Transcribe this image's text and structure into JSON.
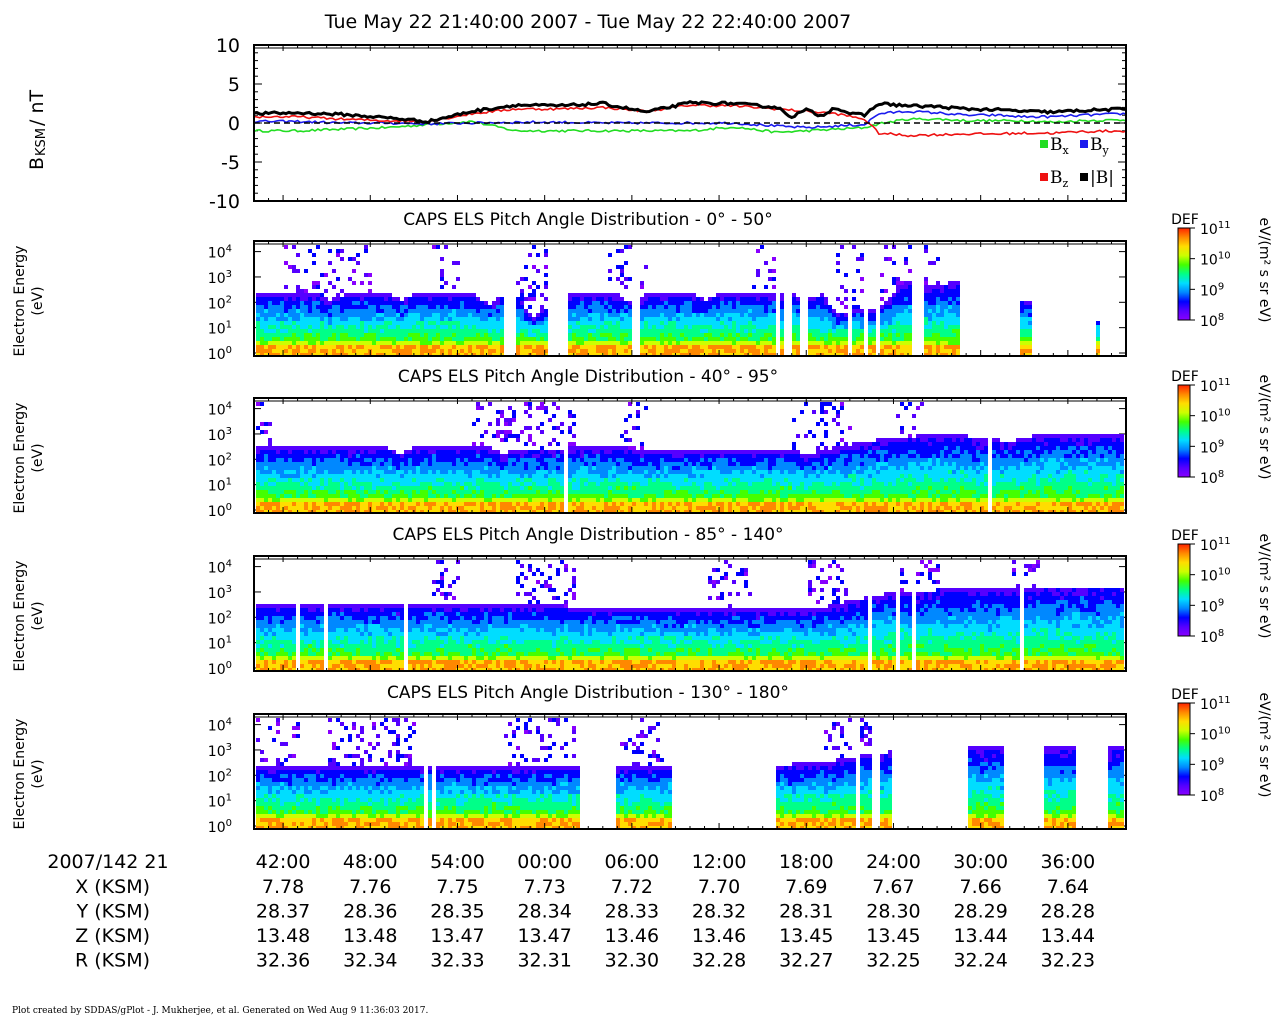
{
  "page_title": "Tue May 22 21:40:00 2007 - Tue May 22 22:40:00 2007",
  "footer_text": "Plot created by SDDAS/gPlot - J. Mukherjee, et al.  Generated on Wed Aug 9 11:36:03 2017.",
  "colors": {
    "Bx": "#22dd22",
    "By": "#1a1aee",
    "Bz": "#ee1111",
    "Bmag": "#000000",
    "colorbar": [
      "#8800ff",
      "#5500ff",
      "#0000ff",
      "#0088ff",
      "#00ddff",
      "#00ff88",
      "#44ff00",
      "#ccff00",
      "#ffdd00",
      "#ff8800",
      "#ff2200"
    ]
  },
  "chart_data": [
    {
      "id": "mag",
      "type": "line",
      "title": "",
      "ylabel_main": "B",
      "ylabel_sub": "KSM",
      "ylabel_unit": "/ nT",
      "ylim": [
        -10,
        10
      ],
      "yticks": [
        "10",
        "5",
        "0",
        "-5",
        "-10"
      ],
      "xlim": [
        0,
        60
      ],
      "zero_line": true,
      "legend": [
        {
          "key": "Bx",
          "base": "B",
          "sub": "x"
        },
        {
          "key": "By",
          "base": "B",
          "sub": "y"
        },
        {
          "key": "Bz",
          "base": "B",
          "sub": "z"
        },
        {
          "key": "Bmag",
          "base": "|B|",
          "sub": ""
        }
      ],
      "series": [
        {
          "name": "Bx",
          "x": [
            0,
            3,
            6,
            9,
            12,
            15,
            18,
            21,
            24,
            27,
            30,
            33,
            36,
            38,
            40,
            42,
            43,
            45,
            47,
            49,
            51,
            53,
            55,
            57,
            60
          ],
          "y": [
            -1.0,
            -1.0,
            -0.8,
            -0.6,
            -0.2,
            0.2,
            -1.0,
            -1.0,
            -1.0,
            -1.0,
            -1.0,
            -0.5,
            -1.2,
            -1.0,
            -0.8,
            -0.6,
            -0.1,
            0.5,
            0.5,
            0.3,
            0.3,
            0.3,
            0.1,
            0.3,
            0.4
          ]
        },
        {
          "name": "By",
          "x": [
            0,
            3,
            6,
            9,
            12,
            15,
            18,
            21,
            24,
            27,
            30,
            33,
            36,
            38,
            40,
            42,
            43,
            45,
            47,
            49,
            51,
            53,
            55,
            57,
            60
          ],
          "y": [
            0.2,
            0.2,
            0.0,
            0.0,
            -0.1,
            0.0,
            0.1,
            0.1,
            0.0,
            0.0,
            0.0,
            0.0,
            -0.4,
            -0.6,
            -0.4,
            -0.2,
            1.2,
            1.5,
            1.3,
            1.0,
            1.0,
            0.8,
            0.8,
            1.0,
            1.2
          ]
        },
        {
          "name": "Bz",
          "x": [
            0,
            3,
            6,
            9,
            12,
            15,
            18,
            21,
            24,
            27,
            30,
            33,
            36,
            38,
            40,
            42,
            43,
            45,
            47,
            49,
            51,
            53,
            55,
            57,
            60
          ],
          "y": [
            0.8,
            0.8,
            0.5,
            0.3,
            0.2,
            1.2,
            1.8,
            1.8,
            2.0,
            1.5,
            2.3,
            2.2,
            1.8,
            1.5,
            1.2,
            0.5,
            -1.3,
            -1.6,
            -1.5,
            -1.4,
            -1.4,
            -1.3,
            -1.3,
            -1.1,
            -1.0
          ]
        },
        {
          "name": "|B|",
          "x": [
            0,
            3,
            6,
            9,
            12,
            15,
            18,
            21,
            24,
            27,
            30,
            33,
            36,
            37,
            38,
            39,
            40,
            41,
            42,
            43,
            45,
            47,
            49,
            51,
            53,
            55,
            57,
            60
          ],
          "y": [
            1.2,
            1.3,
            1.1,
            0.7,
            0.2,
            1.5,
            2.3,
            2.2,
            2.5,
            1.4,
            2.6,
            2.5,
            2.0,
            0.8,
            1.7,
            0.9,
            2.0,
            1.2,
            1.0,
            2.5,
            2.2,
            2.1,
            1.8,
            1.7,
            1.5,
            1.4,
            1.6,
            1.8
          ]
        }
      ]
    },
    {
      "id": "pad1",
      "type": "heatmap",
      "title": "CAPS ELS Pitch Angle Distribution - 0° - 50°",
      "ylabel": "Electron Energy",
      "yunit": "(eV)",
      "yticks": [
        {
          "b": "10",
          "e": "4"
        },
        {
          "b": "10",
          "e": "3"
        },
        {
          "b": "10",
          "e": "2"
        },
        {
          "b": "10",
          "e": "1"
        },
        {
          "b": "10",
          "e": "0"
        }
      ],
      "ylog_range": [
        0,
        4.3
      ],
      "colorbar": {
        "label": "DEF",
        "unit": "eV/(m² s sr eV)",
        "ticks": [
          {
            "b": "10",
            "e": "11"
          },
          {
            "b": "10",
            "e": "10"
          },
          {
            "b": "10",
            "e": "9"
          },
          {
            "b": "10",
            "e": "8"
          }
        ],
        "range": [
          8,
          11
        ]
      },
      "cutoff": [
        [
          0,
          2.4
        ],
        [
          4,
          2.4
        ],
        [
          5,
          2.1
        ],
        [
          6,
          2.3
        ],
        [
          9,
          2.4
        ],
        [
          10,
          2.1
        ],
        [
          11,
          2.4
        ],
        [
          15,
          2.4
        ],
        [
          16,
          1.9
        ],
        [
          17,
          2.3
        ],
        [
          18,
          2.3
        ],
        [
          19,
          1.4
        ],
        [
          20,
          1.8
        ],
        [
          21,
          2.3
        ],
        [
          24,
          2.4
        ],
        [
          25,
          2.3
        ],
        [
          26,
          1.9
        ],
        [
          27,
          2.4
        ],
        [
          30,
          2.4
        ],
        [
          31,
          2.1
        ],
        [
          32,
          2.4
        ],
        [
          35,
          2.4
        ],
        [
          37,
          2.3
        ],
        [
          38,
          2.2
        ],
        [
          39,
          2.3
        ],
        [
          40,
          1.6
        ],
        [
          43,
          1.8
        ],
        [
          44,
          2.5
        ],
        [
          45,
          2.8
        ],
        [
          46,
          2.6
        ],
        [
          48,
          2.8
        ],
        [
          50,
          3.0
        ],
        [
          53,
          2.0
        ],
        [
          56,
          2.0
        ],
        [
          58,
          1.3
        ]
      ],
      "gaps": [
        [
          17,
          18
        ],
        [
          20,
          21.4
        ],
        [
          26,
          26.5
        ],
        [
          35.4,
          35.6
        ],
        [
          35.9,
          36.1
        ],
        [
          36.3,
          36.5
        ],
        [
          36.7,
          36.9
        ],
        [
          37.4,
          38.1
        ],
        [
          40.8,
          41.0
        ],
        [
          41.2,
          41.4
        ],
        [
          41.8,
          42.0
        ],
        [
          42.6,
          43.0
        ],
        [
          45.1,
          46.0
        ],
        [
          48.4,
          52.5
        ],
        [
          53.3,
          57.8
        ],
        [
          58.2,
          60
        ]
      ],
      "speckle_cols": [
        [
          2,
          8
        ],
        [
          12,
          14
        ],
        [
          17,
          21
        ],
        [
          24,
          27
        ],
        [
          34,
          36
        ],
        [
          40,
          42
        ],
        [
          43,
          47
        ]
      ]
    },
    {
      "id": "pad2",
      "type": "heatmap",
      "title": "CAPS ELS Pitch Angle Distribution - 40° - 95°",
      "ylabel": "Electron Energy",
      "yunit": "(eV)",
      "yticks": [
        {
          "b": "10",
          "e": "4"
        },
        {
          "b": "10",
          "e": "3"
        },
        {
          "b": "10",
          "e": "2"
        },
        {
          "b": "10",
          "e": "1"
        },
        {
          "b": "10",
          "e": "0"
        }
      ],
      "ylog_range": [
        0,
        4.3
      ],
      "colorbar": {
        "label": "DEF",
        "unit": "eV/(m² s sr eV)",
        "ticks": [
          {
            "b": "10",
            "e": "11"
          },
          {
            "b": "10",
            "e": "10"
          },
          {
            "b": "10",
            "e": "9"
          },
          {
            "b": "10",
            "e": "8"
          }
        ],
        "range": [
          8,
          11
        ]
      },
      "cutoff": [
        [
          0,
          2.5
        ],
        [
          9,
          2.5
        ],
        [
          10,
          2.2
        ],
        [
          11,
          2.5
        ],
        [
          16,
          2.5
        ],
        [
          17,
          2.2
        ],
        [
          18,
          2.4
        ],
        [
          25,
          2.5
        ],
        [
          26,
          2.4
        ],
        [
          37,
          2.4
        ],
        [
          38,
          2.2
        ],
        [
          40,
          2.5
        ],
        [
          43,
          2.8
        ],
        [
          45,
          2.9
        ],
        [
          48,
          3.0
        ],
        [
          52,
          2.7
        ],
        [
          54,
          3.0
        ],
        [
          60,
          3.0
        ]
      ],
      "gaps": [
        [
          2.5,
          2.6
        ],
        [
          5.2,
          5.3
        ],
        [
          15.1,
          15.2
        ],
        [
          18.6,
          18.7
        ],
        [
          21.3,
          21.4
        ],
        [
          26.4,
          26.5
        ],
        [
          29.7,
          29.8
        ],
        [
          36.5,
          36.6
        ],
        [
          44.2,
          44.3
        ],
        [
          45.3,
          45.4
        ],
        [
          50.5,
          50.6
        ],
        [
          53.7,
          53.8
        ],
        [
          55.3,
          55.4
        ],
        [
          57.7,
          57.8
        ]
      ],
      "speckle_cols": [
        [
          0,
          1
        ],
        [
          15,
          22
        ],
        [
          25,
          27
        ],
        [
          37,
          41
        ],
        [
          44,
          46
        ]
      ]
    },
    {
      "id": "pad3",
      "type": "heatmap",
      "title": "CAPS ELS Pitch Angle Distribution - 85° - 140°",
      "ylabel": "Electron Energy",
      "yunit": "(eV)",
      "yticks": [
        {
          "b": "10",
          "e": "4"
        },
        {
          "b": "10",
          "e": "3"
        },
        {
          "b": "10",
          "e": "2"
        },
        {
          "b": "10",
          "e": "1"
        },
        {
          "b": "10",
          "e": "0"
        }
      ],
      "ylog_range": [
        0,
        4.3
      ],
      "colorbar": {
        "label": "DEF",
        "unit": "eV/(m² s sr eV)",
        "ticks": [
          {
            "b": "10",
            "e": "11"
          },
          {
            "b": "10",
            "e": "10"
          },
          {
            "b": "10",
            "e": "9"
          },
          {
            "b": "10",
            "e": "8"
          }
        ],
        "range": [
          8,
          11
        ]
      },
      "cutoff": [
        [
          0,
          2.5
        ],
        [
          10,
          2.5
        ],
        [
          20,
          2.5
        ],
        [
          22,
          2.4
        ],
        [
          36,
          2.3
        ],
        [
          38,
          2.3
        ],
        [
          40,
          2.5
        ],
        [
          42,
          2.8
        ],
        [
          44,
          3.0
        ],
        [
          48,
          3.1
        ],
        [
          50,
          3.1
        ],
        [
          54,
          3.2
        ],
        [
          60,
          3.2
        ]
      ],
      "gaps": [
        [
          2.8,
          2.9
        ],
        [
          4.8,
          4.9
        ],
        [
          10.3,
          10.4
        ],
        [
          17.3,
          17.4
        ],
        [
          22.6,
          22.7
        ],
        [
          31.0,
          31.1
        ],
        [
          34.1,
          34.2
        ],
        [
          42.2,
          42.3
        ],
        [
          44.1,
          44.2
        ],
        [
          45.2,
          45.3
        ],
        [
          50.6,
          50.7
        ],
        [
          52.7,
          52.8
        ],
        [
          56.3,
          56.4
        ]
      ],
      "speckle_cols": [
        [
          12,
          14
        ],
        [
          18,
          22
        ],
        [
          31,
          34
        ],
        [
          38,
          41
        ],
        [
          44,
          47
        ],
        [
          52,
          54
        ]
      ]
    },
    {
      "id": "pad4",
      "type": "heatmap",
      "title": "CAPS ELS Pitch Angle Distribution - 130° - 180°",
      "ylabel": "Electron Energy",
      "yunit": "(eV)",
      "yticks": [
        {
          "b": "10",
          "e": "4"
        },
        {
          "b": "10",
          "e": "3"
        },
        {
          "b": "10",
          "e": "2"
        },
        {
          "b": "10",
          "e": "1"
        },
        {
          "b": "10",
          "e": "0"
        }
      ],
      "ylog_range": [
        0,
        4.3
      ],
      "colorbar": {
        "label": "DEF",
        "unit": "eV/(m² s sr eV)",
        "ticks": [
          {
            "b": "10",
            "e": "11"
          },
          {
            "b": "10",
            "e": "10"
          },
          {
            "b": "10",
            "e": "9"
          },
          {
            "b": "10",
            "e": "8"
          }
        ],
        "range": [
          8,
          11
        ]
      },
      "cutoff": [
        [
          0,
          2.4
        ],
        [
          8,
          2.4
        ],
        [
          9,
          2.4
        ],
        [
          14,
          2.4
        ],
        [
          22,
          2.4
        ],
        [
          28,
          2.4
        ],
        [
          36,
          2.4
        ],
        [
          40,
          2.6
        ],
        [
          43,
          2.9
        ],
        [
          49,
          3.1
        ],
        [
          51,
          3.1
        ],
        [
          54,
          3.1
        ],
        [
          56,
          3.1
        ],
        [
          59,
          3.1
        ]
      ],
      "gaps": [
        [
          11.5,
          11.8
        ],
        [
          12.2,
          12.4
        ],
        [
          22.3,
          24.8
        ],
        [
          28.7,
          35.9
        ],
        [
          39.8,
          40.0
        ],
        [
          40.6,
          40.8
        ],
        [
          41.2,
          41.6
        ],
        [
          42.5,
          42.8
        ],
        [
          43.8,
          48.9
        ],
        [
          51.5,
          54.3
        ],
        [
          56.5,
          58.5
        ]
      ],
      "speckle_cols": [
        [
          0,
          3
        ],
        [
          5,
          11
        ],
        [
          17,
          22
        ],
        [
          25,
          28
        ],
        [
          39,
          43
        ]
      ]
    }
  ],
  "x_axis": {
    "date_label": "2007/142 21",
    "tick_minutes": [
      2,
      8,
      14,
      20,
      26,
      32,
      38,
      44,
      50,
      56
    ],
    "ticks": [
      "42:00",
      "48:00",
      "54:00",
      "00:00",
      "06:00",
      "12:00",
      "18:00",
      "24:00",
      "30:00",
      "36:00"
    ]
  },
  "ephemeris": [
    {
      "label": "X (KSM)",
      "values": [
        "7.78",
        "7.76",
        "7.75",
        "7.73",
        "7.72",
        "7.70",
        "7.69",
        "7.67",
        "7.66",
        "7.64"
      ]
    },
    {
      "label": "Y (KSM)",
      "values": [
        "28.37",
        "28.36",
        "28.35",
        "28.34",
        "28.33",
        "28.32",
        "28.31",
        "28.30",
        "28.29",
        "28.28"
      ]
    },
    {
      "label": "Z (KSM)",
      "values": [
        "13.48",
        "13.48",
        "13.47",
        "13.47",
        "13.46",
        "13.46",
        "13.45",
        "13.45",
        "13.44",
        "13.44"
      ]
    },
    {
      "label": "R (KSM)",
      "values": [
        "32.36",
        "32.34",
        "32.33",
        "32.31",
        "32.30",
        "32.28",
        "32.27",
        "32.25",
        "32.24",
        "32.23"
      ]
    }
  ]
}
